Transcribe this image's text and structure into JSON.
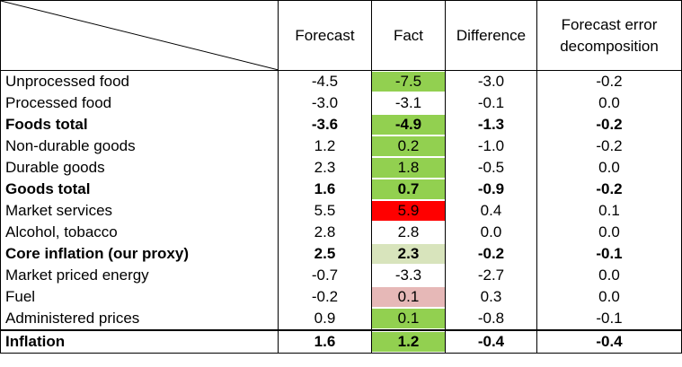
{
  "headers": {
    "forecast": "Forecast",
    "fact": "Fact",
    "difference": "Difference",
    "decomp_line1": "Forecast error",
    "decomp_line2": "decomposition"
  },
  "rows": [
    {
      "label": "Unprocessed food",
      "forecast": "-4.5",
      "fact": "-7.5",
      "difference": "-3.0",
      "decomposition": "-0.2",
      "bold": false,
      "fact_color": "#92d050"
    },
    {
      "label": "Processed food",
      "forecast": "-3.0",
      "fact": "-3.1",
      "difference": "-0.1",
      "decomposition": "0.0",
      "bold": false,
      "fact_color": "#ffffff"
    },
    {
      "label": "Foods total",
      "forecast": "-3.6",
      "fact": "-4.9",
      "difference": "-1.3",
      "decomposition": "-0.2",
      "bold": true,
      "fact_color": "#92d050"
    },
    {
      "label": "Non-durable goods",
      "forecast": "1.2",
      "fact": "0.2",
      "difference": "-1.0",
      "decomposition": "-0.2",
      "bold": false,
      "fact_color": "#92d050"
    },
    {
      "label": "Durable goods",
      "forecast": "2.3",
      "fact": "1.8",
      "difference": "-0.5",
      "decomposition": "0.0",
      "bold": false,
      "fact_color": "#92d050"
    },
    {
      "label": "Goods total",
      "forecast": "1.6",
      "fact": "0.7",
      "difference": "-0.9",
      "decomposition": "-0.2",
      "bold": true,
      "fact_color": "#92d050"
    },
    {
      "label": "Market services",
      "forecast": "5.5",
      "fact": "5.9",
      "difference": "0.4",
      "decomposition": "0.1",
      "bold": false,
      "fact_color": "#ff0000"
    },
    {
      "label": "Alcohol, tobacco",
      "forecast": "2.8",
      "fact": "2.8",
      "difference": "0.0",
      "decomposition": "0.0",
      "bold": false,
      "fact_color": "#ffffff"
    },
    {
      "label": "Core inflation (our proxy)",
      "forecast": "2.5",
      "fact": "2.3",
      "difference": "-0.2",
      "decomposition": "-0.1",
      "bold": true,
      "fact_color": "#d8e4bc"
    },
    {
      "label": "Market priced energy",
      "forecast": "-0.7",
      "fact": "-3.3",
      "difference": "-2.7",
      "decomposition": "0.0",
      "bold": false,
      "fact_color": "#ffffff"
    },
    {
      "label": "Fuel",
      "forecast": "-0.2",
      "fact": "0.1",
      "difference": "0.3",
      "decomposition": "0.0",
      "bold": false,
      "fact_color": "#e6b8b7"
    },
    {
      "label": "Administered prices",
      "forecast": "0.9",
      "fact": "0.1",
      "difference": "-0.8",
      "decomposition": "-0.1",
      "bold": false,
      "fact_color": "#92d050"
    }
  ],
  "total": {
    "label": "Inflation",
    "forecast": "1.6",
    "fact": "1.2",
    "difference": "-0.4",
    "decomposition": "-0.4",
    "bold": true,
    "fact_color": "#92d050"
  }
}
